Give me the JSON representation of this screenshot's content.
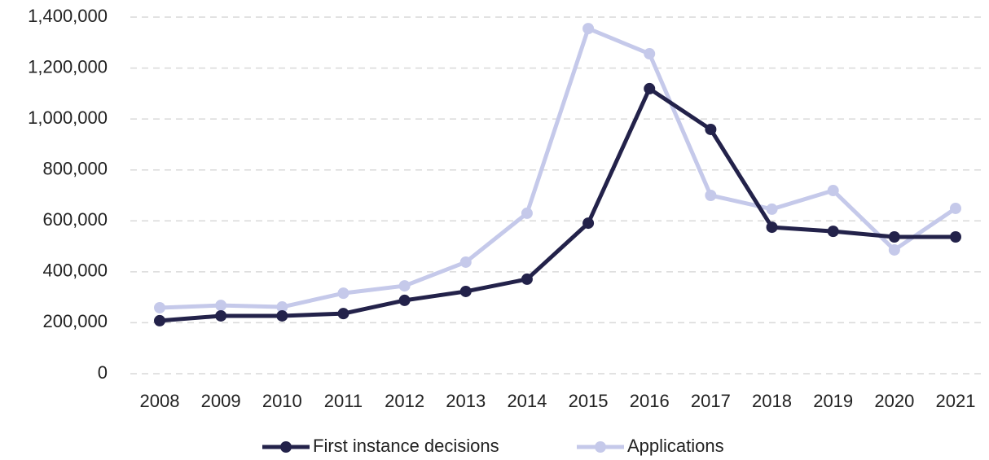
{
  "chart_data": {
    "type": "line",
    "categories": [
      "2008",
      "2009",
      "2010",
      "2011",
      "2012",
      "2013",
      "2014",
      "2015",
      "2016",
      "2017",
      "2018",
      "2019",
      "2020",
      "2021"
    ],
    "series": [
      {
        "name": "First instance decisions",
        "color": "#23224a",
        "values": [
          208000,
          227000,
          227000,
          236000,
          288000,
          323000,
          371000,
          591000,
          1119000,
          959000,
          575000,
          559000,
          537000,
          537000
        ]
      },
      {
        "name": "Applications",
        "color": "#c5c9ea",
        "values": [
          259000,
          268000,
          262000,
          316000,
          345000,
          438000,
          630000,
          1355000,
          1256000,
          700000,
          646000,
          719000,
          486000,
          649000
        ]
      }
    ],
    "ylim": [
      0,
      1400000
    ],
    "yticks": [
      0,
      {
        "value": 200000,
        "label": "200,000"
      },
      {
        "value": 400000,
        "label": "400,000"
      },
      {
        "value": 600000,
        "label": "600,000"
      },
      {
        "value": 800000,
        "label": "800,000"
      },
      {
        "value": 1000000,
        "label": "1,000,000"
      },
      {
        "value": 1200000,
        "label": "1,200,000"
      },
      {
        "value": 1400000,
        "label": "1,400,000"
      }
    ],
    "grid": true,
    "legend": "bottom"
  }
}
